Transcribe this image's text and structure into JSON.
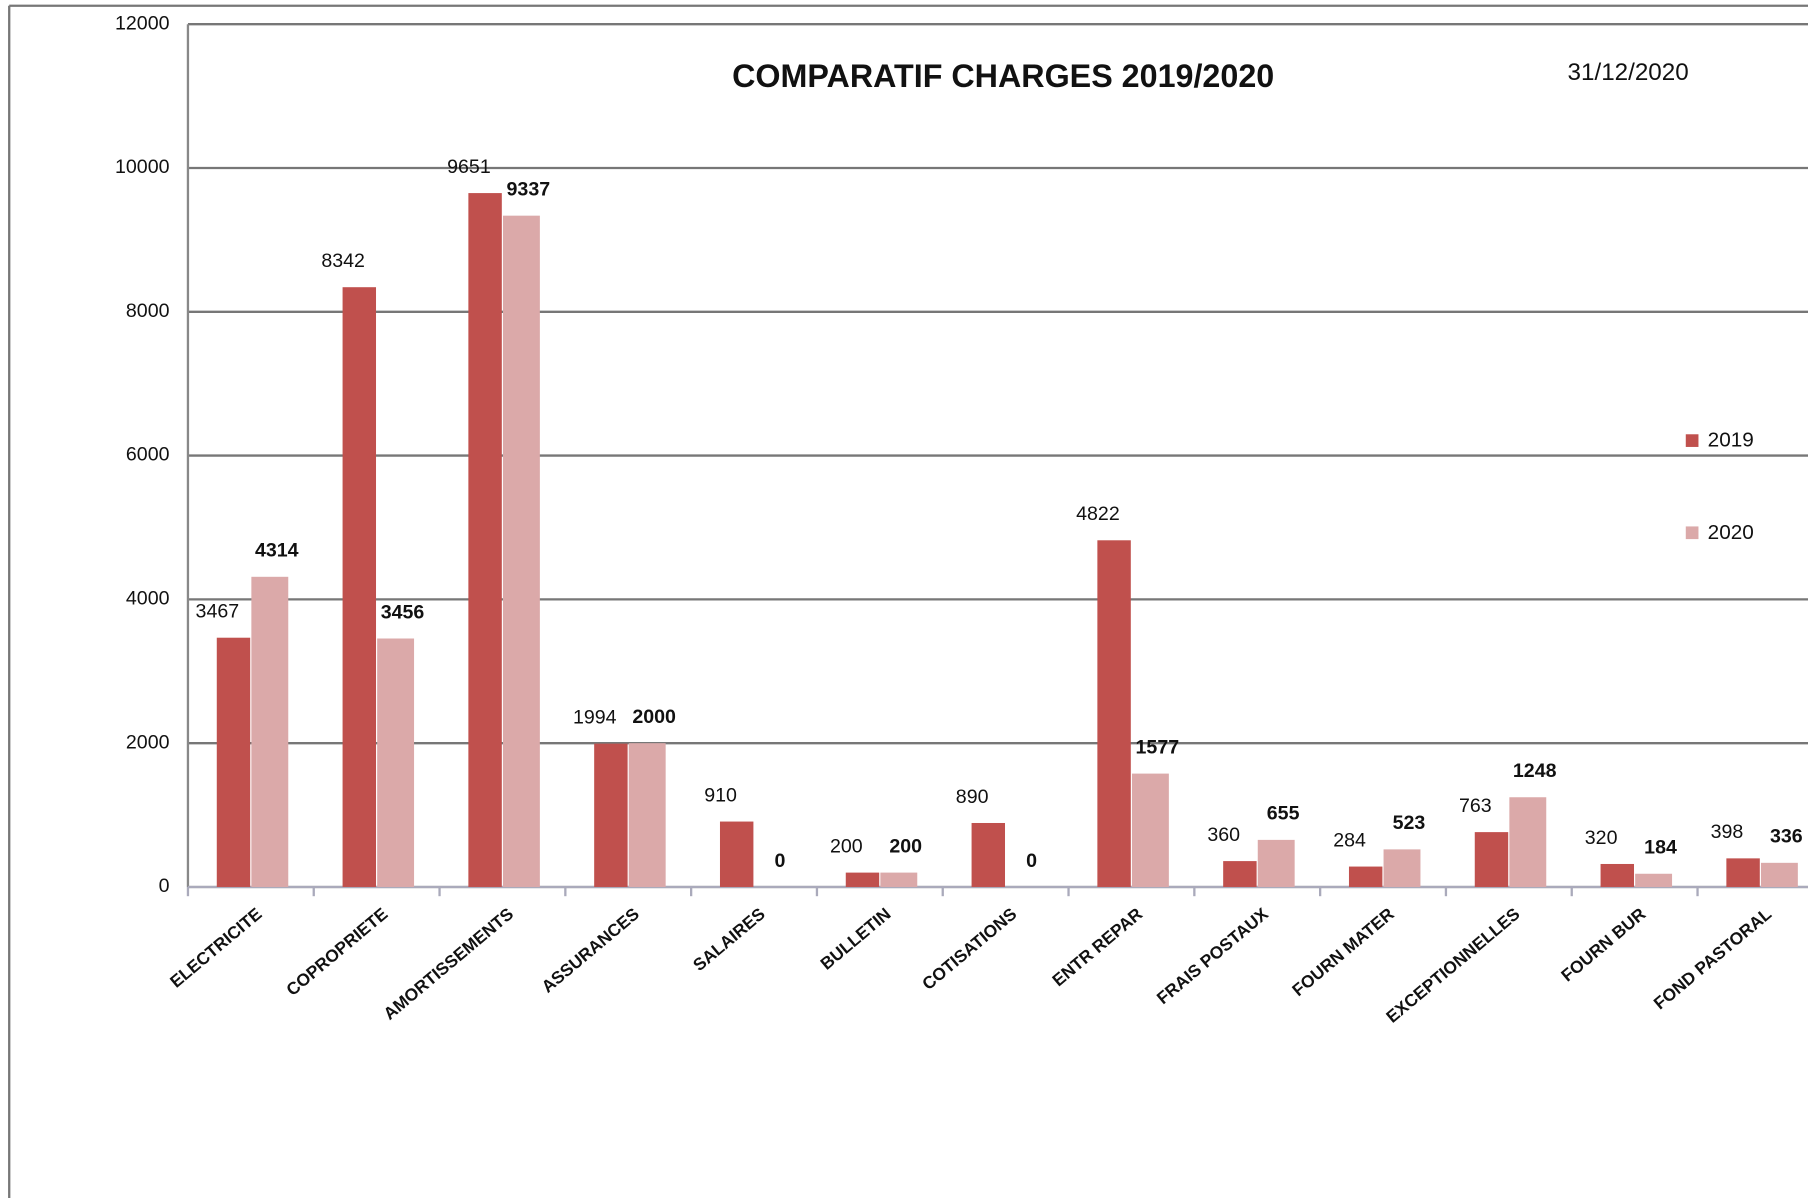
{
  "chart_data": {
    "type": "bar",
    "title": "COMPARATIF CHARGES 2019/2020",
    "subtitle": "31/12/2020",
    "categories": [
      "ELECTRICITE",
      "COPROPRIETE",
      "AMORTISSEMENTS",
      "ASSURANCES",
      "SALAIRES",
      "BULLETIN",
      "COTISATIONS",
      "ENTR REPAR",
      "FRAIS POSTAUX",
      "FOURN MATER",
      "EXCEPTIONNELLES",
      "FOURN BUR",
      "FOND PASTORAL"
    ],
    "series": [
      {
        "name": "2019",
        "color": "#c0504d",
        "values": [
          3467,
          8342,
          9651,
          1994,
          910,
          200,
          890,
          4822,
          360,
          284,
          763,
          320,
          398
        ]
      },
      {
        "name": "2020",
        "color": "#dba9a9",
        "values": [
          4314,
          3456,
          9337,
          2000,
          0,
          200,
          0,
          1577,
          655,
          523,
          1248,
          184,
          336
        ]
      }
    ],
    "ylim": [
      0,
      12000
    ],
    "yticks": [
      0,
      2000,
      4000,
      6000,
      8000,
      10000,
      12000
    ],
    "grid": true,
    "legend": "right"
  }
}
